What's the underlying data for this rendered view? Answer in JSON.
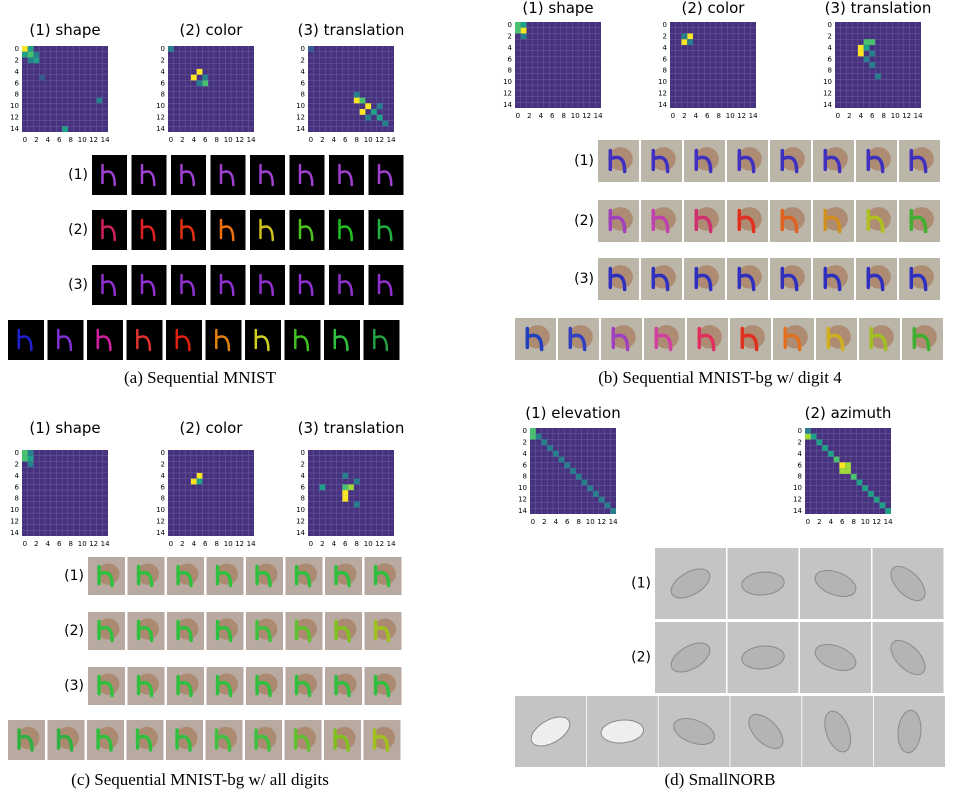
{
  "ticks": [
    0,
    2,
    4,
    6,
    8,
    10,
    12,
    14
  ],
  "panels": [
    {
      "caption": "(a) Sequential MNIST",
      "bg": "#000000",
      "heatmaps": [
        {
          "title": "(1) shape",
          "cells": [
            [
              0,
              0,
              1
            ],
            [
              0,
              1,
              0.55
            ],
            [
              1,
              0,
              0.5
            ],
            [
              1,
              1,
              0.7
            ],
            [
              1,
              2,
              0.35
            ],
            [
              2,
              2,
              0.55
            ],
            [
              2,
              1,
              0.3
            ],
            [
              9,
              13,
              0.3
            ],
            [
              14,
              7,
              0.45
            ],
            [
              5,
              3,
              0.2
            ]
          ]
        },
        {
          "title": "(2) color",
          "cells": [
            [
              0,
              0,
              0.3
            ],
            [
              4,
              5,
              1
            ],
            [
              5,
              4,
              1
            ],
            [
              6,
              6,
              0.6
            ],
            [
              5,
              6,
              0.3
            ],
            [
              6,
              5,
              0.3
            ]
          ]
        },
        {
          "title": "(3) translation",
          "cells": [
            [
              0,
              0,
              0.2
            ],
            [
              8,
              8,
              0.3
            ],
            [
              9,
              8,
              0.95
            ],
            [
              9,
              9,
              0.6
            ],
            [
              10,
              10,
              1
            ],
            [
              11,
              9,
              0.95
            ],
            [
              11,
              11,
              0.55
            ],
            [
              12,
              12,
              0.5
            ],
            [
              13,
              13,
              0.4
            ],
            [
              10,
              12,
              0.4
            ],
            [
              12,
              10,
              0.4
            ]
          ]
        }
      ],
      "rows": [
        {
          "label": "(1)",
          "colors": [
            "#a040d0",
            "#a040d0",
            "#a040d0",
            "#a040d0",
            "#a040d0",
            "#a040d0",
            "#a040d0",
            "#a040d0"
          ]
        },
        {
          "label": "(2)",
          "colors": [
            "#d02060",
            "#e02020",
            "#e03010",
            "#f07010",
            "#d0c020",
            "#50c020",
            "#20c020",
            "#20b040"
          ]
        },
        {
          "label": "(3)",
          "colors": [
            "#9030d0",
            "#9030d0",
            "#9030d0",
            "#9030d0",
            "#9030d0",
            "#9030d0",
            "#9030d0",
            "#9030d0"
          ]
        },
        {
          "colors": [
            "#2020d0",
            "#8030d0",
            "#d020a0",
            "#e03030",
            "#e02010",
            "#e08010",
            "#d0d020",
            "#40c020",
            "#30c040",
            "#20a040"
          ]
        }
      ]
    },
    {
      "caption": "(b) Sequential MNIST-bg w/ digit 4",
      "bg": "#bcb6a8",
      "heatmaps": [
        {
          "title": "(1) shape",
          "cells": [
            [
              0,
              0,
              0.7
            ],
            [
              1,
              0,
              0.6
            ],
            [
              0,
              1,
              0.5
            ],
            [
              1,
              1,
              1
            ],
            [
              2,
              1,
              0.25
            ]
          ]
        },
        {
          "title": "(2) color",
          "cells": [
            [
              2,
              3,
              1
            ],
            [
              3,
              2,
              1
            ],
            [
              2,
              2,
              0.35
            ],
            [
              3,
              3,
              0.3
            ]
          ]
        },
        {
          "title": "(3) translation",
          "cells": [
            [
              3,
              5,
              0.6
            ],
            [
              3,
              6,
              0.7
            ],
            [
              4,
              4,
              1
            ],
            [
              5,
              4,
              1
            ],
            [
              4,
              5,
              0.5
            ],
            [
              5,
              6,
              0.35
            ],
            [
              6,
              5,
              0.4
            ],
            [
              7,
              6,
              0.3
            ],
            [
              9,
              7,
              0.25
            ]
          ]
        }
      ],
      "rows": [
        {
          "label": "(1)",
          "colors": [
            "#4030c0",
            "#4030c0",
            "#4030c0",
            "#4030c0",
            "#4030c0",
            "#4030c0",
            "#4030c0",
            "#4030c0"
          ]
        },
        {
          "label": "(2)",
          "colors": [
            "#a040c0",
            "#c040b0",
            "#d03070",
            "#e03020",
            "#e06020",
            "#d09020",
            "#b0c020",
            "#40b030"
          ]
        },
        {
          "label": "(3)",
          "colors": [
            "#3030c0",
            "#3030c0",
            "#3030c0",
            "#3030c0",
            "#3030c0",
            "#3030c0",
            "#3030c0",
            "#3030c0"
          ]
        },
        {
          "colors": [
            "#2040c0",
            "#3040c0",
            "#a040c0",
            "#d040a0",
            "#e03060",
            "#e03020",
            "#e07020",
            "#d0b020",
            "#a0c020",
            "#40b030"
          ]
        }
      ]
    },
    {
      "caption": "(c) Sequential MNIST-bg w/ all digits",
      "bg": "#b8aaa0",
      "heatmaps": [
        {
          "title": "(1) shape",
          "cells": [
            [
              0,
              0,
              0.6
            ],
            [
              1,
              0,
              0.7
            ],
            [
              0,
              1,
              0.4
            ],
            [
              1,
              1,
              0.5
            ],
            [
              2,
              1,
              0.3
            ]
          ]
        },
        {
          "title": "(2) color",
          "cells": [
            [
              4,
              5,
              1
            ],
            [
              5,
              4,
              1
            ],
            [
              5,
              5,
              0.45
            ]
          ]
        },
        {
          "title": "(3) translation",
          "cells": [
            [
              4,
              6,
              0.4
            ],
            [
              6,
              2,
              0.5
            ],
            [
              6,
              7,
              0.9
            ],
            [
              7,
              6,
              1
            ],
            [
              8,
              6,
              1
            ],
            [
              6,
              6,
              0.6
            ],
            [
              5,
              8,
              0.35
            ],
            [
              9,
              8,
              0.3
            ]
          ]
        }
      ],
      "rows": [
        {
          "label": "(1)",
          "colors": [
            "#30c040",
            "#30c040",
            "#30c040",
            "#30c040",
            "#30c040",
            "#30c040",
            "#30c040",
            "#30c040"
          ]
        },
        {
          "label": "(2)",
          "colors": [
            "#30c040",
            "#30c040",
            "#30c040",
            "#30c040",
            "#40c040",
            "#60c030",
            "#80c020",
            "#a0c020"
          ]
        },
        {
          "label": "(3)",
          "colors": [
            "#30c040",
            "#30c040",
            "#30c040",
            "#30c040",
            "#30c040",
            "#30c040",
            "#30c040",
            "#30c040"
          ]
        },
        {
          "colors": [
            "#30b040",
            "#30b040",
            "#30c040",
            "#30c040",
            "#30c040",
            "#40c040",
            "#40c040",
            "#60c030",
            "#80c020",
            "#a0c020"
          ]
        }
      ]
    },
    {
      "caption": "(d) SmallNORB",
      "bg": "#c8c8c8",
      "heatmaps": [
        {
          "title": "(1) elevation",
          "cells": [
            [
              0,
              0,
              0.6
            ],
            [
              1,
              1,
              0.4
            ],
            [
              2,
              2,
              0.35
            ],
            [
              3,
              3,
              0.35
            ],
            [
              4,
              4,
              0.3
            ],
            [
              5,
              5,
              0.3
            ],
            [
              6,
              6,
              0.3
            ],
            [
              7,
              7,
              0.3
            ],
            [
              8,
              8,
              0.3
            ],
            [
              9,
              9,
              0.3
            ],
            [
              10,
              10,
              0.3
            ],
            [
              11,
              11,
              0.3
            ],
            [
              12,
              12,
              0.3
            ],
            [
              13,
              13,
              0.3
            ],
            [
              14,
              14,
              0.3
            ],
            [
              1,
              0,
              0.7
            ]
          ]
        },
        {
          "title": "(2) azimuth",
          "cells": [
            [
              0,
              0,
              0.4
            ],
            [
              1,
              1,
              0.5
            ],
            [
              2,
              2,
              0.5
            ],
            [
              3,
              3,
              0.55
            ],
            [
              4,
              4,
              0.55
            ],
            [
              5,
              5,
              0.6
            ],
            [
              6,
              6,
              1
            ],
            [
              6,
              7,
              0.8
            ],
            [
              7,
              6,
              0.8
            ],
            [
              7,
              7,
              0.9
            ],
            [
              8,
              8,
              0.6
            ],
            [
              9,
              9,
              0.55
            ],
            [
              10,
              10,
              0.55
            ],
            [
              11,
              11,
              0.5
            ],
            [
              12,
              12,
              0.5
            ],
            [
              13,
              13,
              0.5
            ],
            [
              14,
              14,
              0.45
            ],
            [
              1,
              0,
              0.8
            ]
          ]
        }
      ],
      "rows": [
        {
          "label": "(1)",
          "colors": [
            "#b4b4b4",
            "#b4b4b4",
            "#b4b4b4",
            "#b4b4b4"
          ]
        },
        {
          "label": "(2)",
          "colors": [
            "#b4b4b4",
            "#b4b4b4",
            "#b4b4b4",
            "#b4b4b4"
          ]
        },
        {
          "colors": [
            "#eeeeee",
            "#eeeeee",
            "#b4b4b4",
            "#b4b4b4",
            "#b4b4b4",
            "#b4b4b4"
          ]
        }
      ]
    }
  ]
}
